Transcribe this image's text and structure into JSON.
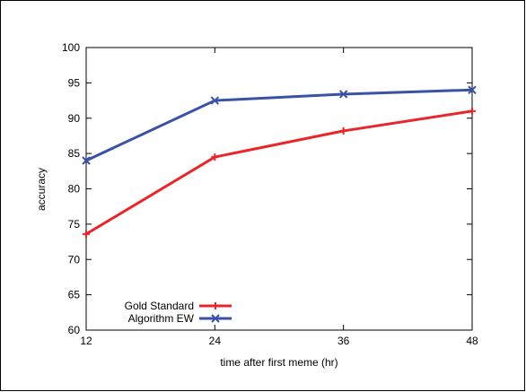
{
  "chart_data": {
    "type": "line",
    "title": "",
    "xlabel": "time after first meme (hr)",
    "ylabel": "accuracy",
    "x": [
      12,
      24,
      36,
      48
    ],
    "x_ticks": [
      "12",
      "24",
      "36",
      "48"
    ],
    "y_ticks": [
      "60",
      "65",
      "70",
      "75",
      "80",
      "85",
      "90",
      "95",
      "100"
    ],
    "xlim": [
      12,
      48
    ],
    "ylim": [
      60,
      100
    ],
    "grid": false,
    "legend_position": "bottom-left",
    "series": [
      {
        "name": "Gold Standard",
        "values": [
          73.6,
          84.5,
          88.2,
          91.0
        ],
        "color": "#e8262b",
        "marker": "plus"
      },
      {
        "name": "Algorithm EW",
        "values": [
          84.0,
          92.5,
          93.4,
          94.0
        ],
        "color": "#3a52a4",
        "marker": "cross"
      }
    ]
  }
}
